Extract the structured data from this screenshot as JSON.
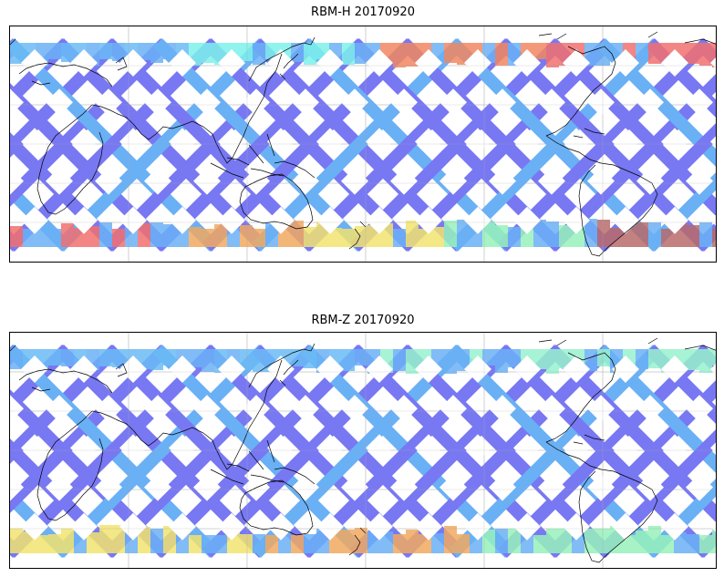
{
  "panels": [
    {
      "title": "RBM-H 20170920",
      "colors": {
        "dominant": "#6a6af2",
        "secondary": "#5aa8f5",
        "north_band": [
          "#5ab4f5",
          "#6ef0e8",
          "#f07a50",
          "#f06060"
        ],
        "south_band": [
          "#f06060",
          "#f0a050",
          "#f0e060",
          "#8cf0b4",
          "#b05a5a"
        ]
      }
    },
    {
      "title": "RBM-Z 20170920",
      "colors": {
        "dominant": "#6a6af2",
        "secondary": "#5aa8f5",
        "north_band": [
          "#5ab4f5",
          "#8cf0c8"
        ],
        "south_band": [
          "#f0e060",
          "#f0a050",
          "#8cf0b4"
        ]
      }
    }
  ],
  "map": {
    "projection": "plate-carree",
    "central_longitude": 150,
    "gridlines": true,
    "coastlines": true,
    "data_coverage": "satellite swath tracks"
  }
}
